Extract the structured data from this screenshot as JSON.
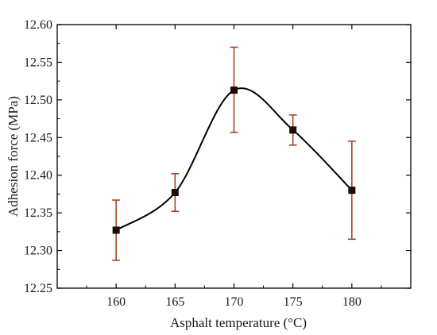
{
  "chart_data": {
    "type": "line",
    "xlabel": "Asphalt temperature (°C)",
    "ylabel": "Adhesion force (MPa)",
    "xlim": [
      155,
      185
    ],
    "ylim": [
      12.25,
      12.6
    ],
    "x_ticks": [
      160,
      165,
      170,
      175,
      180
    ],
    "y_ticks": [
      12.25,
      12.3,
      12.35,
      12.4,
      12.45,
      12.5,
      12.55,
      12.6
    ],
    "x_tick_labels": [
      "160",
      "165",
      "170",
      "175",
      "180"
    ],
    "y_tick_labels": [
      "12.25",
      "12.30",
      "12.35",
      "12.40",
      "12.45",
      "12.50",
      "12.55",
      "12.60"
    ],
    "grid": false,
    "smooth_curve": true,
    "series": [
      {
        "x": [
          160,
          165,
          170,
          175,
          180
        ],
        "values": [
          12.327,
          12.377,
          12.513,
          12.46,
          12.38
        ],
        "error_upper": [
          12.367,
          12.402,
          12.57,
          12.48,
          12.445
        ],
        "error_lower": [
          12.287,
          12.352,
          12.457,
          12.44,
          12.315
        ],
        "marker": "square",
        "marker_color": "#1a0a0a",
        "line_color": "#000000",
        "error_color": "#a0391c"
      }
    ]
  }
}
